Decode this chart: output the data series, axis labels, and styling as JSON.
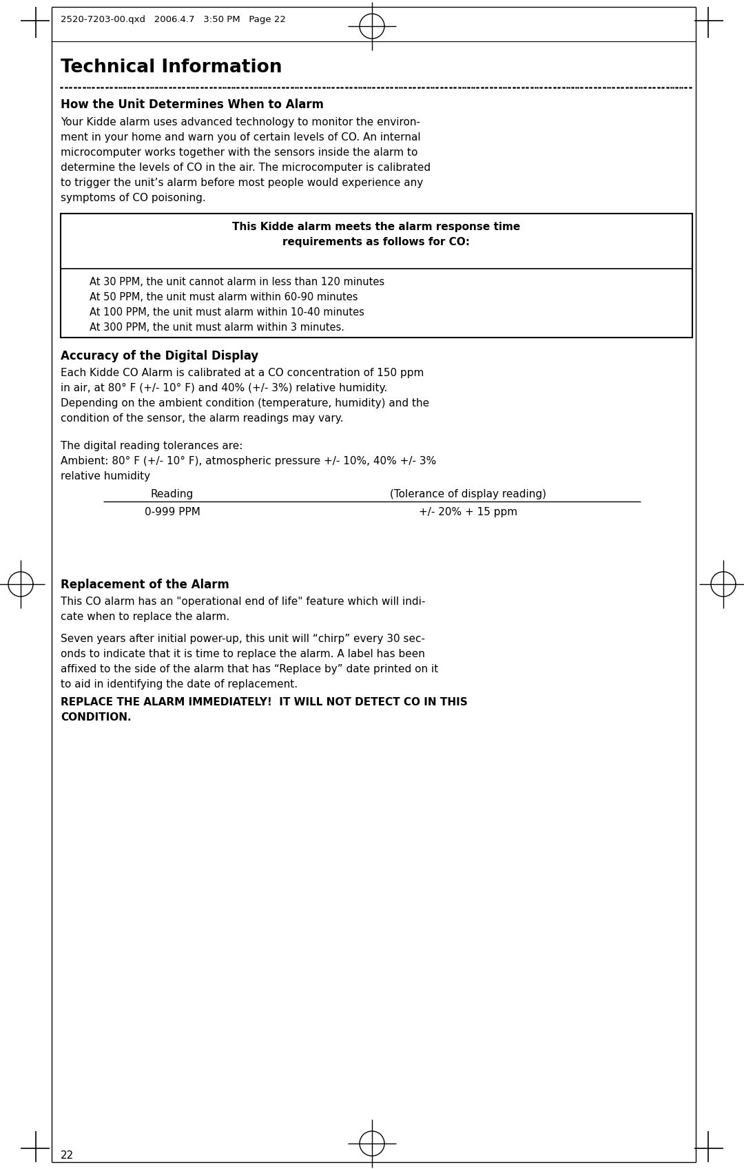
{
  "bg_color": "#ffffff",
  "text_color": "#000000",
  "page_header": "2520-7203-00.qxd   2006.4.7   3:50 PM   Page 22",
  "main_title": "Technical Information",
  "section1_heading": "How the Unit Determines When to Alarm",
  "section1_body_lines": [
    "Your Kidde alarm uses advanced technology to monitor the environ-",
    "ment in your home and warn you of certain levels of CO. An internal",
    "microcomputer works together with the sensors inside the alarm to",
    "determine the levels of CO in the air. The microcomputer is calibrated",
    "to trigger the unit’s alarm before most people would experience any",
    "symptoms of CO poisoning."
  ],
  "table_header_line1": "This Kidde alarm meets the alarm response time",
  "table_header_line2": "requirements as follows for CO:",
  "table_rows": [
    "At 30 PPM, the unit cannot alarm in less than 120 minutes",
    "At 50 PPM, the unit must alarm within 60-90 minutes",
    "At 100 PPM, the unit must alarm within 10-40 minutes",
    "At 300 PPM, the unit must alarm within 3 minutes."
  ],
  "section2_heading": "Accuracy of the Digital Display",
  "section2_body1_lines": [
    "Each Kidde CO Alarm is calibrated at a CO concentration of 150 ppm",
    "in air, at 80° F (+/- 10° F) and 40% (+/- 3%) relative humidity.",
    "Depending on the ambient condition (temperature, humidity) and the",
    "condition of the sensor, the alarm readings may vary."
  ],
  "section2_body2_lines": [
    "The digital reading tolerances are:",
    "Ambient: 80° F (+/- 10° F), atmospheric pressure +/- 10%, 40% +/- 3%",
    "relative humidity"
  ],
  "table2_col1_header": "Reading",
  "table2_col2_header": "(Tolerance of display reading)",
  "table2_row1_col1": "0-999 PPM",
  "table2_row1_col2": "+/- 20% + 15 ppm",
  "section3_heading": "Replacement of the Alarm",
  "section3_body1_lines": [
    "This CO alarm has an \"operational end of life\" feature which will indi-",
    "cate when to replace the alarm."
  ],
  "section3_body2_lines": [
    "Seven years after initial power-up, this unit will “chirp” every 30 sec-",
    "onds to indicate that it is time to replace the alarm. A label has been",
    "affixed to the side of the alarm that has “Replace by” date printed on it",
    "to aid in identifying the date of replacement."
  ],
  "section3_bold_lines": [
    "REPLACE THE ALARM IMMEDIATELY!  IT WILL NOT DETECT CO IN THIS",
    "CONDITION."
  ],
  "page_number": "22"
}
